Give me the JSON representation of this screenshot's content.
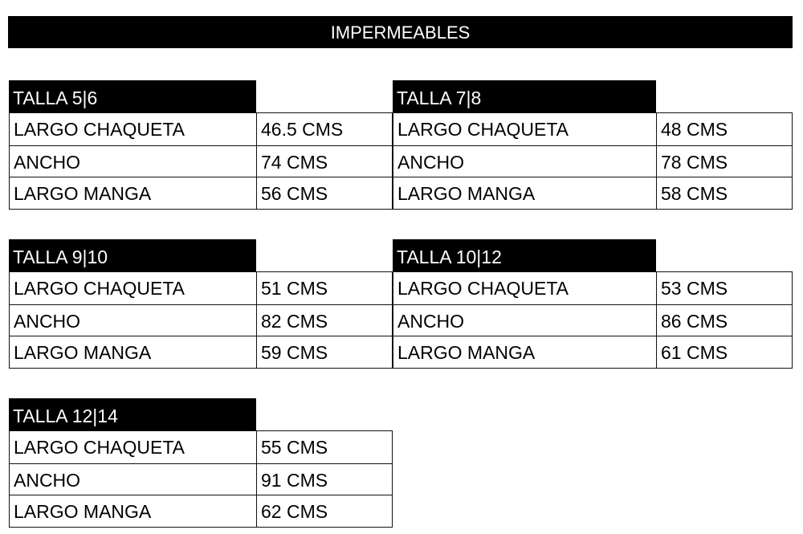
{
  "title": "IMPERMEABLES",
  "tables": [
    {
      "header": "TALLA 5|6",
      "rows": [
        [
          "LARGO CHAQUETA",
          "46.5 CMS"
        ],
        [
          "ANCHO",
          "74 CMS"
        ],
        [
          "LARGO MANGA",
          "56 CMS"
        ]
      ]
    },
    {
      "header": "TALLA 7|8",
      "rows": [
        [
          "LARGO CHAQUETA",
          "48 CMS"
        ],
        [
          "ANCHO",
          "78 CMS"
        ],
        [
          "LARGO MANGA",
          "58 CMS"
        ]
      ]
    },
    {
      "header": "TALLA 9|10",
      "rows": [
        [
          "LARGO CHAQUETA",
          "51 CMS"
        ],
        [
          "ANCHO",
          "82 CMS"
        ],
        [
          "LARGO MANGA",
          "59 CMS"
        ]
      ]
    },
    {
      "header": "TALLA 10|12",
      "rows": [
        [
          "LARGO CHAQUETA",
          "53 CMS"
        ],
        [
          "ANCHO",
          "86 CMS"
        ],
        [
          "LARGO MANGA",
          "61 CMS"
        ]
      ]
    },
    {
      "header": "TALLA 12|14",
      "rows": [
        [
          "LARGO CHAQUETA",
          "55 CMS"
        ],
        [
          "ANCHO",
          "91 CMS"
        ],
        [
          "LARGO MANGA",
          "62 CMS"
        ]
      ]
    }
  ]
}
